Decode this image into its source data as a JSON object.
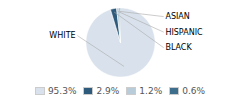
{
  "chart_data": {
    "type": "pie",
    "categories": [
      "WHITE",
      "BLACK",
      "HISPANIC",
      "ASIAN"
    ],
    "values": [
      95.3,
      2.9,
      1.2,
      0.6
    ],
    "colors": [
      "#d9e2ec",
      "#2e5b7b",
      "#b8cdd9",
      "#3d6e8c"
    ],
    "value_labels": [
      "95.3%",
      "2.9%",
      "1.2%",
      "0.6%"
    ],
    "legend": "bottom"
  }
}
